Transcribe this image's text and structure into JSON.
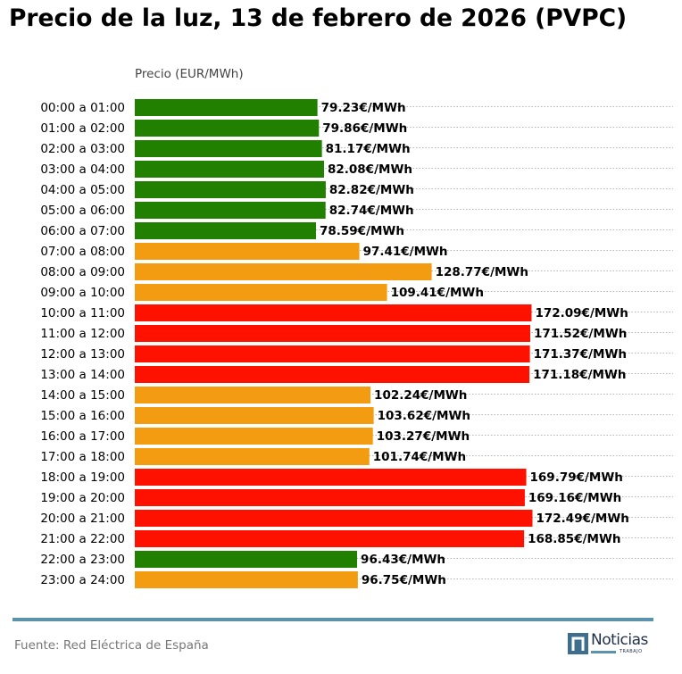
{
  "chart_data": {
    "type": "bar",
    "orientation": "horizontal",
    "title": "Precio de la luz, 13 de febrero de 2026 (PVPC)",
    "xlabel": "Precio (EUR/MWh)",
    "ylabel": "",
    "value_suffix": "€/MWh",
    "grid": "dotted horizontal",
    "categories": [
      "00:00 a 01:00",
      "01:00 a 02:00",
      "02:00 a 03:00",
      "03:00 a 04:00",
      "04:00 a 05:00",
      "05:00 a 06:00",
      "06:00 a 07:00",
      "07:00 a 08:00",
      "08:00 a 09:00",
      "09:00 a 10:00",
      "10:00 a 11:00",
      "11:00 a 12:00",
      "12:00 a 13:00",
      "13:00 a 14:00",
      "14:00 a 15:00",
      "15:00 a 16:00",
      "16:00 a 17:00",
      "17:00 a 18:00",
      "18:00 a 19:00",
      "19:00 a 20:00",
      "20:00 a 21:00",
      "21:00 a 22:00",
      "22:00 a 23:00",
      "23:00 a 24:00"
    ],
    "values": [
      79.23,
      79.86,
      81.17,
      82.08,
      82.82,
      82.74,
      78.59,
      97.41,
      128.77,
      109.41,
      172.09,
      171.52,
      171.37,
      171.18,
      102.24,
      103.62,
      103.27,
      101.74,
      169.79,
      169.16,
      172.49,
      168.85,
      96.43,
      96.75
    ],
    "labels": [
      "79.23€/MWh",
      "79.86€/MWh",
      "81.17€/MWh",
      "82.08€/MWh",
      "82.82€/MWh",
      "82.74€/MWh",
      "78.59€/MWh",
      "97.41€/MWh",
      "128.77€/MWh",
      "109.41€/MWh",
      "172.09€/MWh",
      "171.52€/MWh",
      "171.37€/MWh",
      "171.18€/MWh",
      "102.24€/MWh",
      "103.62€/MWh",
      "103.27€/MWh",
      "101.74€/MWh",
      "169.79€/MWh",
      "169.16€/MWh",
      "172.49€/MWh",
      "168.85€/MWh",
      "96.43€/MWh",
      "96.75€/MWh"
    ],
    "levels": [
      "low",
      "low",
      "low",
      "low",
      "low",
      "low",
      "low",
      "mid",
      "mid",
      "mid",
      "high",
      "high",
      "high",
      "high",
      "mid",
      "mid",
      "mid",
      "mid",
      "high",
      "high",
      "high",
      "high",
      "low",
      "mid"
    ],
    "colors": {
      "low": "#228000",
      "mid": "#f39c12",
      "high": "#ff1100"
    },
    "xlim": [
      0,
      233
    ]
  },
  "footer": {
    "source": "Fuente: Red Eléctrica de España",
    "logo_text": "Noticias",
    "logo_sub": "TRABAJO"
  }
}
